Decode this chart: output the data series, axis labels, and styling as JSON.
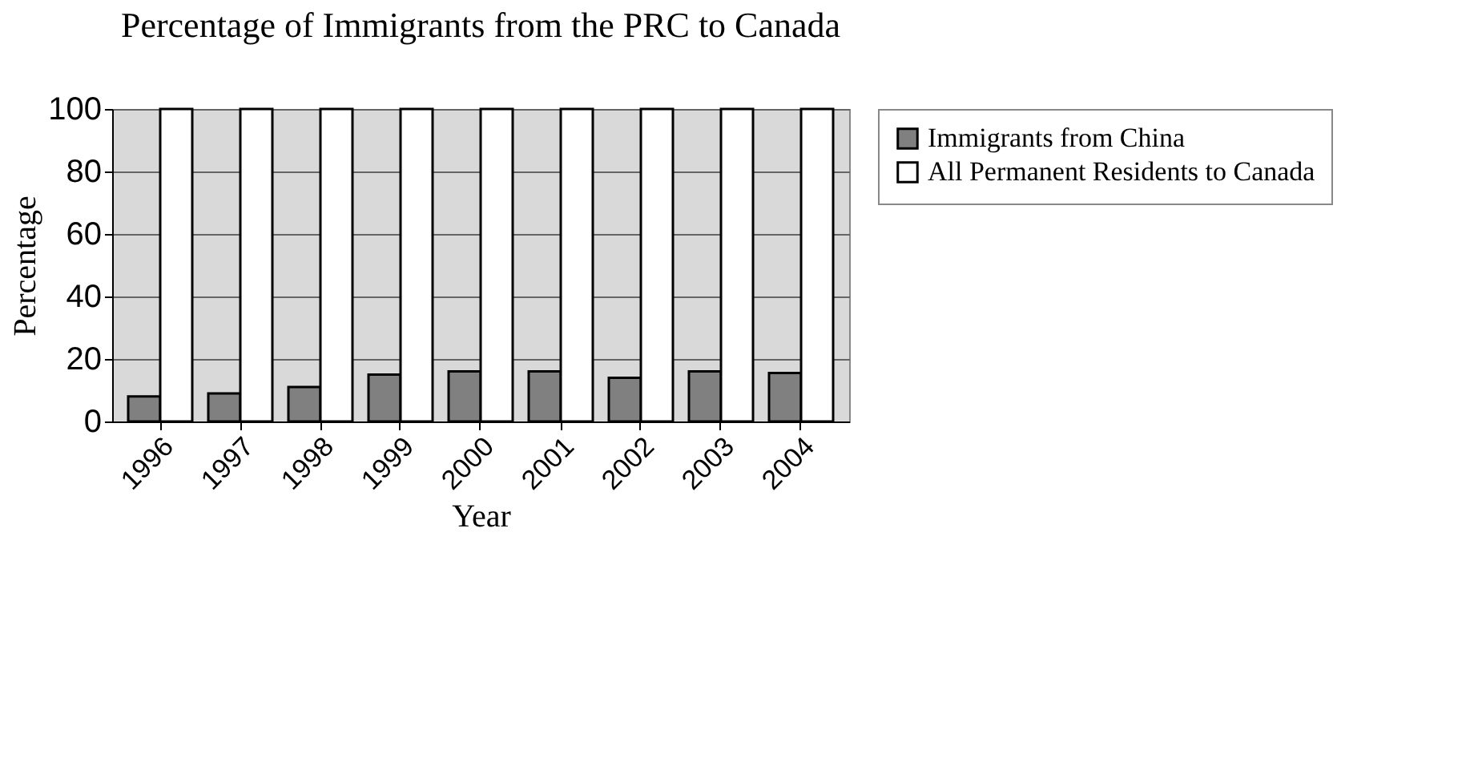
{
  "chart_data": {
    "type": "bar",
    "title": "Percentage of Immigrants from the PRC to Canada",
    "xlabel": "Year",
    "ylabel": "Percentage",
    "categories": [
      "1996",
      "1997",
      "1998",
      "1999",
      "2000",
      "2001",
      "2002",
      "2003",
      "2004"
    ],
    "series": [
      {
        "name": "Immigrants from China",
        "color": "#808080",
        "values": [
          8,
          9,
          11,
          15,
          16,
          16,
          14,
          16,
          15.5
        ]
      },
      {
        "name": "All Permanent Residents to Canada",
        "color": "#ffffff",
        "values": [
          100,
          100,
          100,
          100,
          100,
          100,
          100,
          100,
          100
        ]
      }
    ],
    "ylim": [
      0,
      100
    ],
    "yticks": [
      0,
      20,
      40,
      60,
      80,
      100
    ],
    "grid": "y",
    "legend": "right"
  }
}
